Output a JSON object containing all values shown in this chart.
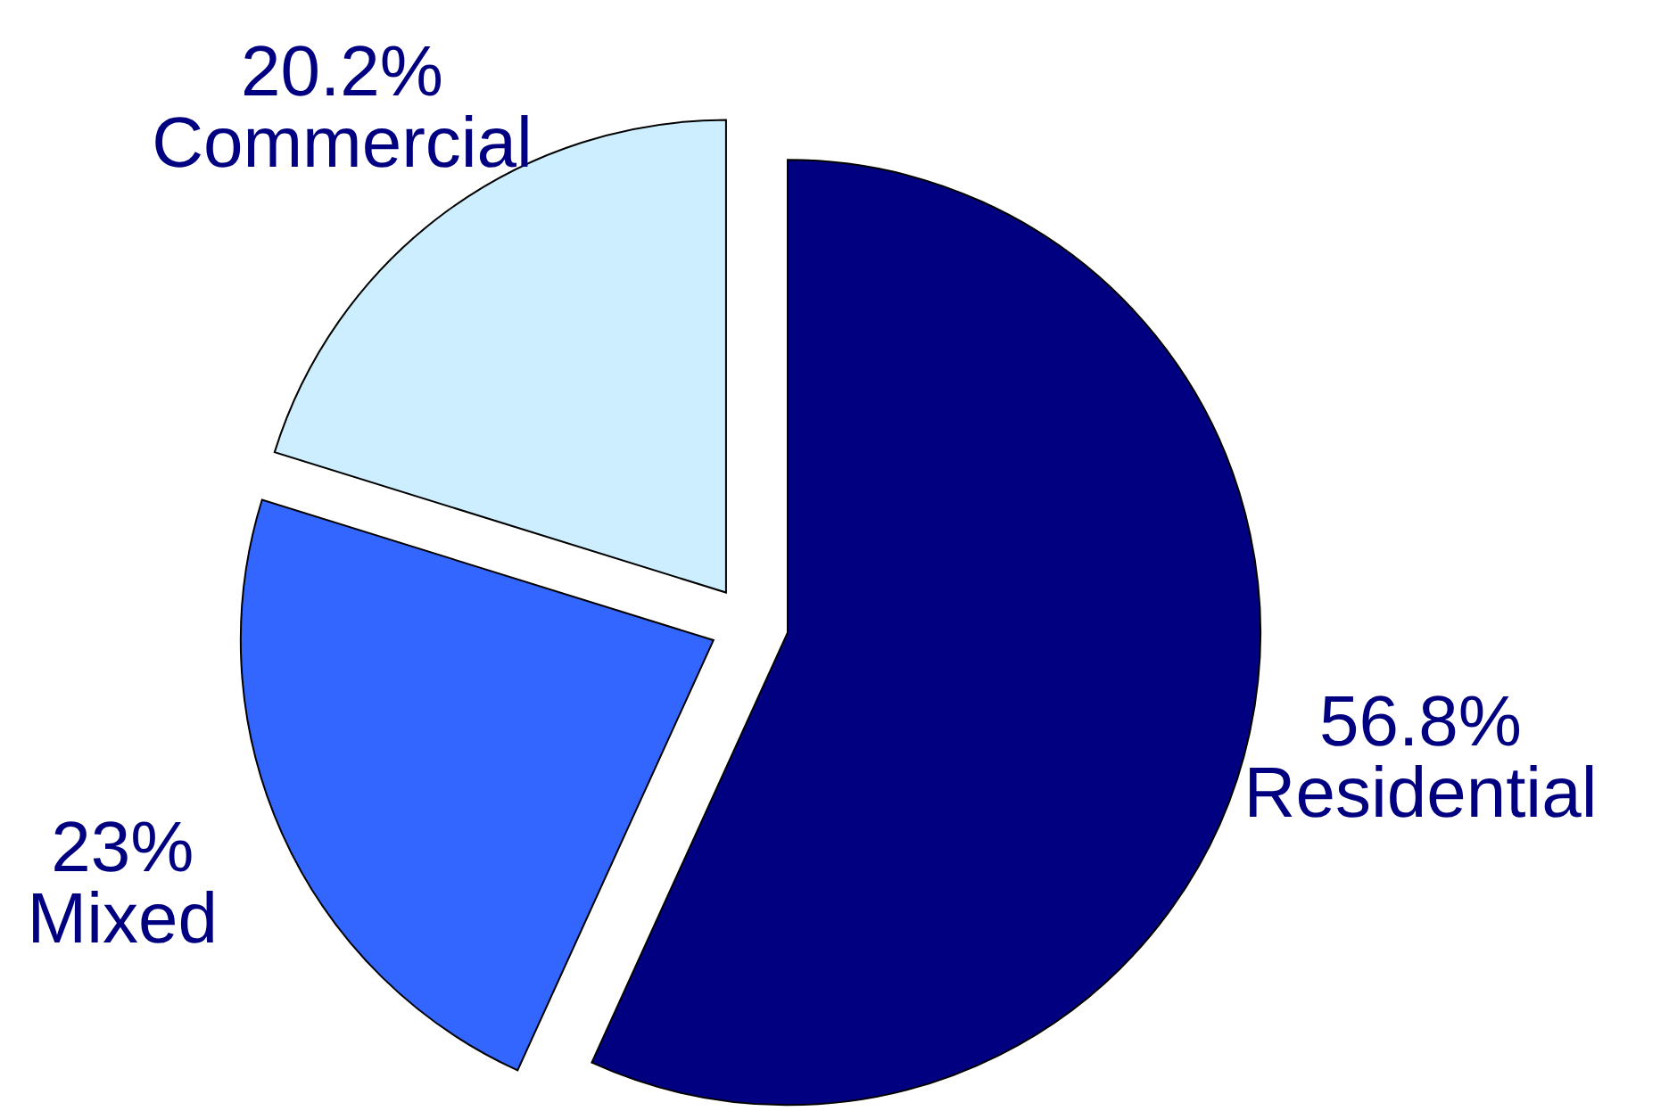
{
  "chart_data": {
    "type": "pie",
    "categories": [
      "Residential",
      "Mixed",
      "Commercial"
    ],
    "values": [
      56.8,
      23,
      20.2
    ],
    "value_labels": [
      "56.8%",
      "23%",
      "20.2%"
    ],
    "colors": [
      "#000080",
      "#3366ff",
      "#cceeff"
    ]
  }
}
